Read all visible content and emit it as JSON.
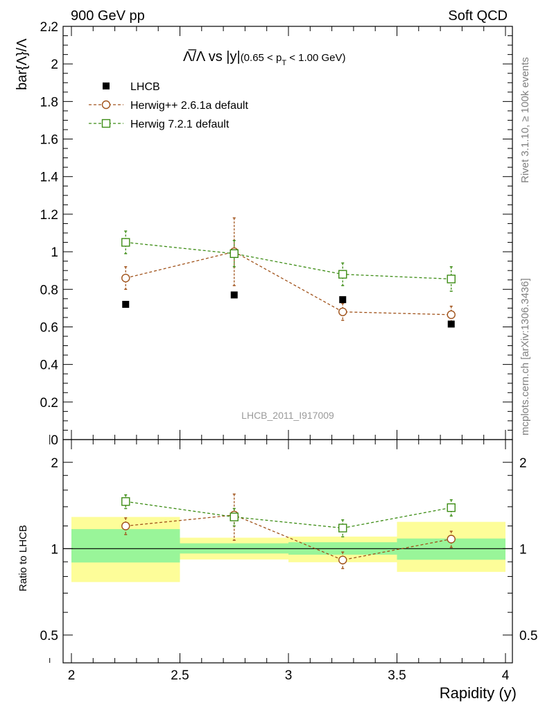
{
  "header": {
    "left": "900 GeV pp",
    "right": "Soft QCD"
  },
  "side_labels": {
    "top": "Rivet 3.1.10, ≥ 100k events",
    "bottom": "mcplots.cern.ch [arXiv:1306.3436]"
  },
  "plot_title": {
    "main": "Λ̅/Λ vs |y|",
    "sub_prefix": "(0.65 < p",
    "sub_subscript": "T",
    "sub_suffix": " < 1.00 GeV)"
  },
  "watermark": "LHCB_2011_I917009",
  "colors": {
    "data": "#000000",
    "herwig_old": "#a0521a",
    "herwig_new": "#3c8c14",
    "band_inner": "#99f599",
    "band_outer": "#fdfd99"
  },
  "chart_data": [
    {
      "type": "scatter",
      "ylabel": "bar{Λ}/Λ",
      "xlim": [
        2,
        4
      ],
      "ylim": [
        0,
        2.2
      ],
      "y_ticks": [
        "0",
        "0.2",
        "0.4",
        "0.6",
        "0.8",
        "1",
        "1.2",
        "1.4",
        "1.6",
        "1.8",
        "2",
        "2.2"
      ],
      "legend_position": "top-left",
      "x": [
        2.25,
        2.75,
        3.25,
        3.75
      ],
      "series": [
        {
          "name": "LHCB",
          "values": [
            0.72,
            0.77,
            0.745,
            0.615
          ],
          "marker": "filled-square"
        },
        {
          "name": "Herwig++ 2.6.1a default",
          "values": [
            0.86,
            1.0,
            0.68,
            0.665
          ],
          "errors": [
            0.06,
            0.18,
            0.045,
            0.045
          ],
          "marker": "open-circle",
          "line": "dashed"
        },
        {
          "name": "Herwig 7.2.1 default",
          "values": [
            1.05,
            0.99,
            0.88,
            0.855
          ],
          "errors": [
            0.06,
            0.07,
            0.06,
            0.065
          ],
          "marker": "open-square",
          "line": "dashed"
        }
      ]
    },
    {
      "type": "scatter",
      "xlabel": "Rapidity (y)",
      "ylabel": "Ratio to LHCB",
      "xlim": [
        2,
        4
      ],
      "ylim": [
        0.4,
        2.4
      ],
      "y_scale": "log",
      "x_ticks": [
        "2",
        "2.5",
        "3",
        "3.5",
        "4"
      ],
      "y_ticks": [
        "0.5",
        "1",
        "2"
      ],
      "reference_line": 1,
      "bands": [
        {
          "x_range": [
            2.0,
            2.5
          ],
          "inner": [
            0.895,
            1.17
          ],
          "outer": [
            0.765,
            1.29
          ]
        },
        {
          "x_range": [
            2.5,
            3.0
          ],
          "inner": [
            0.962,
            1.044
          ],
          "outer": [
            0.917,
            1.092
          ]
        },
        {
          "x_range": [
            3.0,
            3.5
          ],
          "inner": [
            0.953,
            1.053
          ],
          "outer": [
            0.897,
            1.102
          ]
        },
        {
          "x_range": [
            3.5,
            4.0
          ],
          "inner": [
            0.915,
            1.085
          ],
          "outer": [
            0.83,
            1.24
          ]
        }
      ],
      "x": [
        2.25,
        2.75,
        3.25,
        3.75
      ],
      "series": [
        {
          "name": "Herwig++ 2.6.1a default",
          "values": [
            1.2,
            1.31,
            0.913,
            1.08
          ],
          "errors": [
            0.08,
            0.24,
            0.06,
            0.07
          ]
        },
        {
          "name": "Herwig 7.2.1 default",
          "values": [
            1.46,
            1.29,
            1.18,
            1.39
          ],
          "errors": [
            0.08,
            0.09,
            0.08,
            0.09
          ]
        }
      ]
    }
  ]
}
